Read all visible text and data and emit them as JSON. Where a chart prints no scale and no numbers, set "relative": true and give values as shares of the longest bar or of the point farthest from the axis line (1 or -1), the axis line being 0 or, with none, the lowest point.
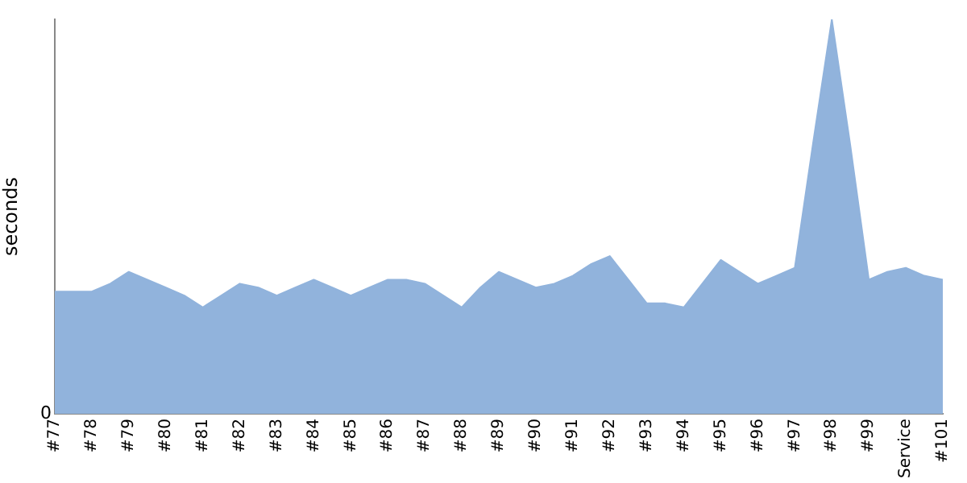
{
  "chart_data": {
    "type": "area",
    "ylabel": "seconds",
    "relative": true,
    "legend": false,
    "grid": false,
    "marker": "none",
    "annotations": [
      "0"
    ],
    "categories": [
      "#77",
      null,
      "#78",
      null,
      "#79",
      null,
      "#80",
      null,
      "#81",
      null,
      "#82",
      null,
      "#83",
      null,
      "#84",
      null,
      "#85",
      null,
      "#86",
      null,
      "#87",
      null,
      "#88",
      null,
      "#89",
      null,
      "#90",
      null,
      "#91",
      null,
      "#92",
      null,
      "#93",
      null,
      "#94",
      null,
      "#95",
      null,
      "#96",
      null,
      "#97",
      null,
      "#98",
      null,
      "#99",
      null,
      "Service",
      null,
      "#101"
    ],
    "series": [
      {
        "color": "#91b3dc",
        "values": [
          0.31,
          0.31,
          0.31,
          0.33,
          0.36,
          0.34,
          0.32,
          0.3,
          0.27,
          0.3,
          0.33,
          0.32,
          0.3,
          0.32,
          0.34,
          0.32,
          0.3,
          0.32,
          0.34,
          0.34,
          0.33,
          0.3,
          0.27,
          0.32,
          0.36,
          0.34,
          0.32,
          0.33,
          0.35,
          0.38,
          0.4,
          0.34,
          0.28,
          0.28,
          0.27,
          0.33,
          0.39,
          0.36,
          0.33,
          0.35,
          0.37,
          0.69,
          1,
          0.68,
          0.34,
          0.36,
          0.37,
          0.35,
          0.34
        ]
      }
    ]
  }
}
